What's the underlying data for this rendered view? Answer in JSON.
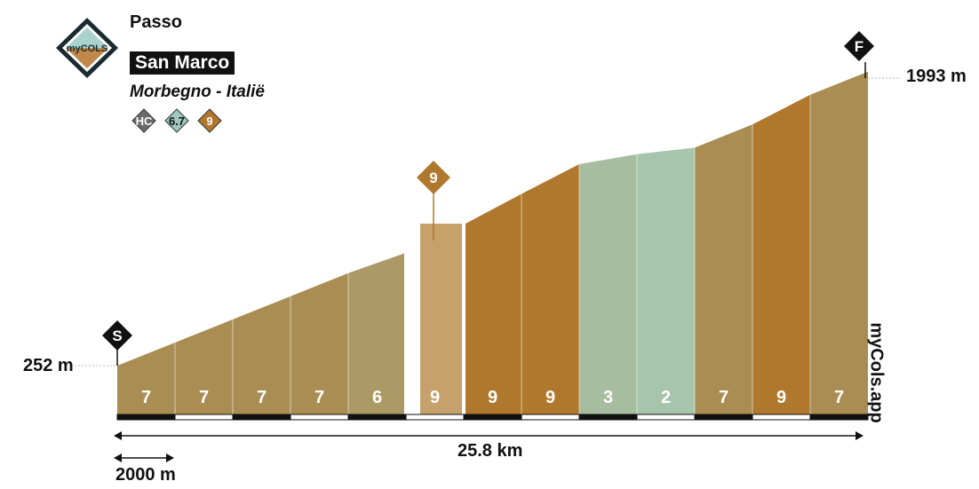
{
  "header": {
    "category": "Passo",
    "name": "San Marco",
    "subtitle": "Morbegno - Italië",
    "badges": [
      {
        "icon": "hc-category-badge-icon",
        "label": "HC"
      },
      {
        "icon": "average-gradient-badge-icon",
        "label": "6.7"
      },
      {
        "icon": "max-gradient-badge-icon",
        "label": "9"
      }
    ],
    "logo_text": "myCOLS"
  },
  "markers": {
    "start": "S",
    "finish": "F",
    "max": "9"
  },
  "elevation": {
    "start": "252 m",
    "end": "1993 m"
  },
  "distance": {
    "total": "25.8 km",
    "scale": "2000 m"
  },
  "brand": "myCols.app",
  "chart_data": {
    "type": "area",
    "title": "San Marco",
    "start_elevation_m": 252,
    "end_elevation_m": 1993,
    "total_distance_km": 25.8,
    "segment_length_m": 2000,
    "segments": [
      {
        "gradient": 7,
        "color": "#a98d52"
      },
      {
        "gradient": 7,
        "color": "#a98d52"
      },
      {
        "gradient": 7,
        "color": "#a98d52"
      },
      {
        "gradient": 7,
        "color": "#a98d52"
      },
      {
        "gradient": 6,
        "color": "#ab9a66"
      },
      {
        "gradient": 9,
        "color": "#c7a16c"
      },
      {
        "gradient": 9,
        "color": "#b0782c"
      },
      {
        "gradient": 9,
        "color": "#b0782c"
      },
      {
        "gradient": 3,
        "color": "#a6bd9f"
      },
      {
        "gradient": 2,
        "color": "#a6c5aa"
      },
      {
        "gradient": 7,
        "color": "#a98d52"
      },
      {
        "gradient": 9,
        "color": "#b0782c"
      },
      {
        "gradient": 7,
        "color": "#a98d52"
      }
    ],
    "colors": {
      "green": "#a6c5aa",
      "tan": "#a98d52",
      "brown": "#b0782c",
      "light": "#c7a16c"
    }
  }
}
